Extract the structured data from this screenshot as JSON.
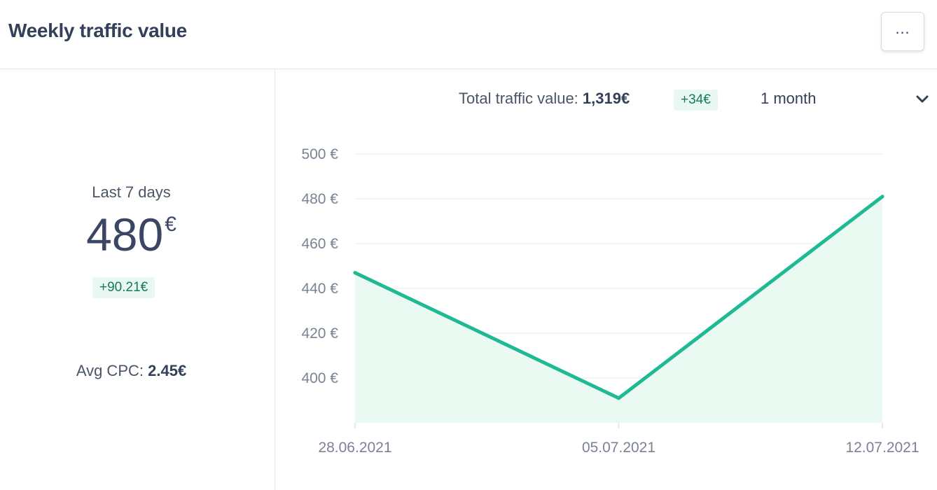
{
  "header": {
    "title": "Weekly traffic value",
    "menu_icon": "ellipsis-icon"
  },
  "left_panel": {
    "period_label": "Last 7 days",
    "value": "480",
    "currency": "€",
    "change": "+90.21€",
    "avg_cpc_label": "Avg CPC:",
    "avg_cpc_value": "2.45€"
  },
  "summary": {
    "label": "Total traffic value:",
    "value": "1,319€",
    "change": "+34€",
    "period": "1 month"
  },
  "colors": {
    "line": "#1fba94",
    "fill": "#ebf9f3",
    "badge_bg": "#e9f8f1",
    "badge_text": "#137a5d"
  },
  "chart_data": {
    "type": "area",
    "x": [
      "28.06.2021",
      "05.07.2021",
      "12.07.2021"
    ],
    "series": [
      {
        "values": [
          447,
          391,
          481
        ]
      }
    ],
    "ylim": [
      380,
      500
    ],
    "yticks": [
      400,
      420,
      440,
      460,
      480,
      500
    ],
    "ytick_labels": [
      "400 €",
      "420 €",
      "440 €",
      "460 €",
      "480 €",
      "500 €"
    ],
    "grid": true
  }
}
